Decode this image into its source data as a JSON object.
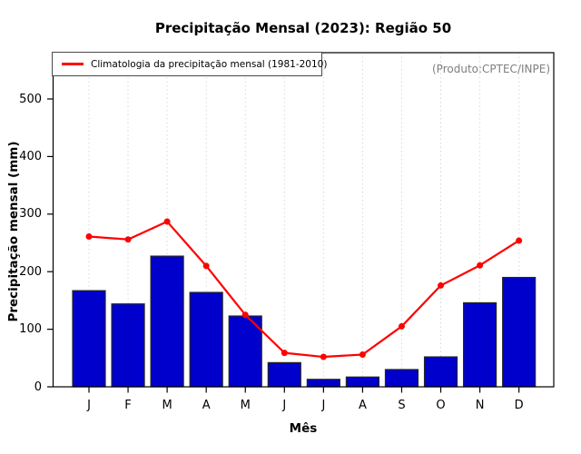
{
  "colors": {
    "bar_fill": "#0000CD",
    "bar_border": "#262626",
    "line": "#FF0000",
    "grid": "#D9D9D9",
    "axis": "#000000",
    "annotation_text": "#7F7F7F",
    "background": "#FFFFFF"
  },
  "chart_data": {
    "type": "bar",
    "title": "Precipitação Mensal (2023): Região 50",
    "annotation": "(Produto:CPTEC/INPE)",
    "xlabel": "Mês",
    "ylabel": "Precipitação mensal (mm)",
    "categories": [
      "J",
      "F",
      "M",
      "A",
      "M",
      "J",
      "J",
      "A",
      "S",
      "O",
      "N",
      "D"
    ],
    "series": [
      {
        "name": "Precipitação Mensal (2023)",
        "type": "bar",
        "values": [
          167,
          144,
          227,
          164,
          123,
          42,
          13,
          17,
          30,
          52,
          146,
          190
        ]
      },
      {
        "name": "Climatologia da precipitação mensal (1981-2010)",
        "type": "line",
        "values": [
          261,
          256,
          287,
          210,
          125,
          59,
          52,
          56,
          105,
          176,
          211,
          254
        ]
      }
    ],
    "ylim": [
      0,
      580
    ],
    "yticks": [
      0,
      100,
      200,
      300,
      400,
      500
    ],
    "grid": "vertical-dotted",
    "legend_position": "top-left",
    "legend_label": "Climatologia da precipitação mensal (1981-2010)"
  }
}
